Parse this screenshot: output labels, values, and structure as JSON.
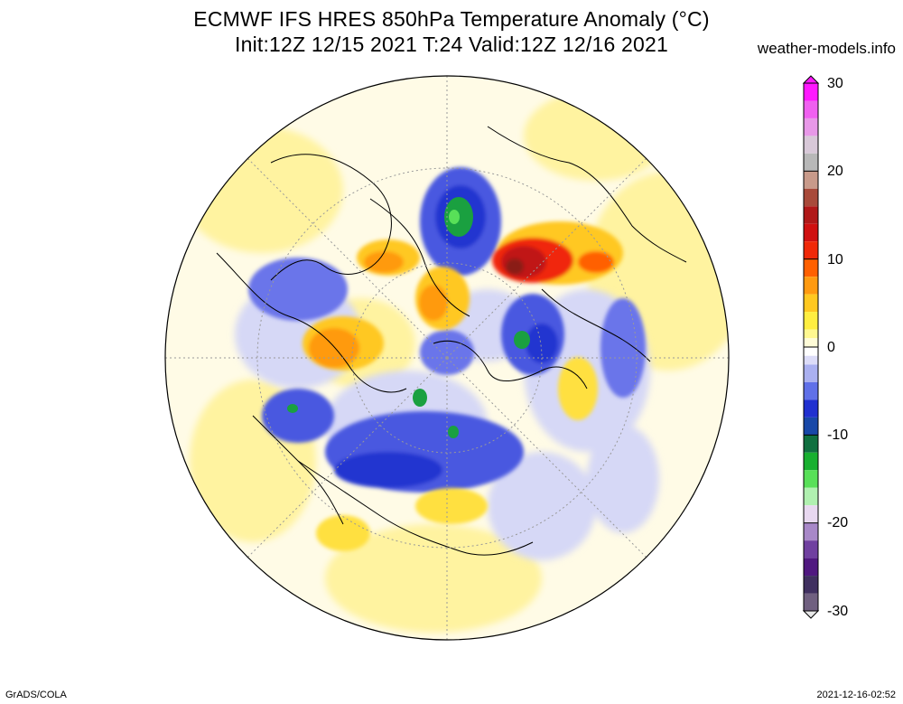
{
  "header": {
    "title_line1": "ECMWF IFS HRES 850hPa Temperature Anomaly (°C)",
    "title_line2": "Init:12Z 12/15 2021 T:24 Valid:12Z 12/16 2021",
    "site": "weather-models.info"
  },
  "footer": {
    "left": "GrADS/COLA",
    "right": "2021-12-16-02:52"
  },
  "colorbar": {
    "labels": [
      "30",
      "20",
      "10",
      "0",
      "-10",
      "-20",
      "-30"
    ],
    "bands": [
      {
        "from": 28,
        "color": "#ff18ff"
      },
      {
        "from": 26,
        "color": "#f060f0"
      },
      {
        "from": 24,
        "color": "#e898e8"
      },
      {
        "from": 22,
        "color": "#d8c8d8"
      },
      {
        "from": 20,
        "color": "#b8b8b8"
      },
      {
        "from": 18,
        "color": "#c89a8a"
      },
      {
        "from": 16,
        "color": "#a84a3a"
      },
      {
        "from": 14,
        "color": "#b01818"
      },
      {
        "from": 12,
        "color": "#d01010"
      },
      {
        "from": 10,
        "color": "#f02808"
      },
      {
        "from": 8,
        "color": "#ff6000"
      },
      {
        "from": 6,
        "color": "#ff9a10"
      },
      {
        "from": 4,
        "color": "#ffc820"
      },
      {
        "from": 2,
        "color": "#ffee40"
      },
      {
        "from": 1,
        "color": "#fff890"
      },
      {
        "from": 0,
        "color": "#fffcd8"
      },
      {
        "from": -1,
        "color": "#ffffff"
      },
      {
        "from": -2,
        "color": "#dcdcf8"
      },
      {
        "from": -4,
        "color": "#aab0f0"
      },
      {
        "from": -6,
        "color": "#6070e8"
      },
      {
        "from": -8,
        "color": "#2030d0"
      },
      {
        "from": -10,
        "color": "#1848a8"
      },
      {
        "from": -12,
        "color": "#107040"
      },
      {
        "from": -14,
        "color": "#18b030"
      },
      {
        "from": -16,
        "color": "#58e058"
      },
      {
        "from": -18,
        "color": "#b0f0b0"
      },
      {
        "from": -20,
        "color": "#e8d8f0"
      },
      {
        "from": -22,
        "color": "#a888c8"
      },
      {
        "from": -24,
        "color": "#7040a0"
      },
      {
        "from": -26,
        "color": "#501880"
      },
      {
        "from": -28,
        "color": "#403060"
      },
      {
        "from": -30,
        "color": "#706080"
      }
    ]
  },
  "colors": {
    "ocean_light": "#fffbe6",
    "warm_light": "#fff3a0",
    "cold_light": "#dcdcf6",
    "cold_mid": "#6a74ea",
    "cold_strong": "#2434d0",
    "green": "#1aa040",
    "orange": "#ff9a10",
    "red": "#d81a10",
    "darkred": "#8a1a14",
    "coast": "#000000"
  }
}
